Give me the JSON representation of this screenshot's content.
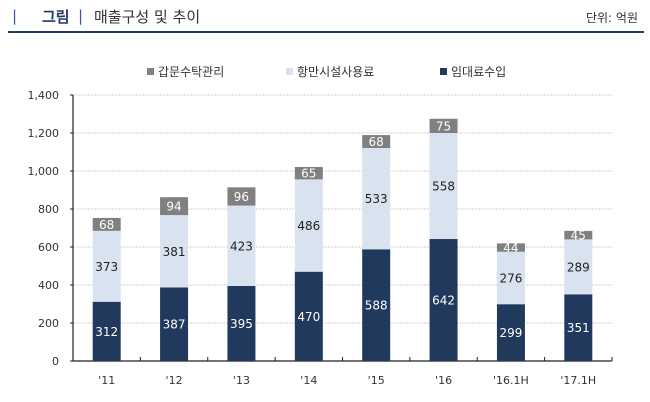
{
  "header": {
    "bar_left": "|",
    "tag": "그림",
    "bar_right": "|",
    "title": "매출구성 및 추이",
    "unit": "단위: 억원"
  },
  "colors": {
    "header_line": "#1f3b68",
    "gray": "#808080",
    "light": "#d9e2ef",
    "dark": "#22395e"
  },
  "chart_data": {
    "type": "bar",
    "stacked": true,
    "title": "매출구성 및 추이",
    "xlabel": "",
    "ylabel": "",
    "ylim": [
      0,
      1400
    ],
    "yticks": [
      0,
      200,
      400,
      600,
      800,
      1000,
      1200,
      1400
    ],
    "ytick_labels": [
      "0",
      "200",
      "400",
      "600",
      "800",
      "1,000",
      "1,200",
      "1,400"
    ],
    "grid": true,
    "legend_position": "top",
    "categories": [
      "'11",
      "'12",
      "'13",
      "'14",
      "'15",
      "'16",
      "'16.1H",
      "'17.1H"
    ],
    "series": [
      {
        "name": "임대료수입",
        "color": "#22395e",
        "label_color": "#ffffff",
        "values": [
          312,
          387,
          395,
          470,
          588,
          642,
          299,
          351
        ]
      },
      {
        "name": "항만시설사용료",
        "color": "#d9e2ef",
        "label_color": "#222222",
        "values": [
          373,
          381,
          423,
          486,
          533,
          558,
          276,
          289
        ]
      },
      {
        "name": "갑문수탁관리",
        "color": "#808080",
        "label_color": "#ffffff",
        "values": [
          68,
          94,
          96,
          65,
          68,
          75,
          44,
          45
        ]
      }
    ],
    "legend_order": [
      "갑문수탁관리",
      "항만시설사용료",
      "임대료수입"
    ]
  }
}
